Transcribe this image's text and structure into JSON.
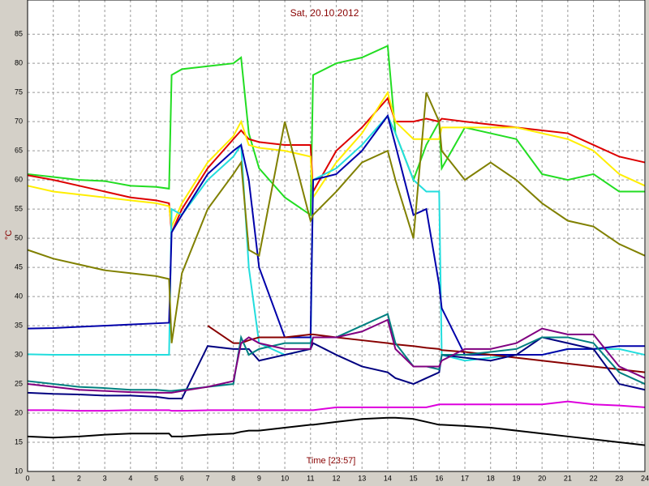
{
  "chart_data": {
    "type": "line",
    "title": "Sat, 20.10.2012",
    "x_label": "Time [23:57]",
    "y_label": "°C",
    "x": [
      0,
      1,
      2,
      3,
      4,
      5,
      5.5,
      5.6,
      6,
      7,
      8,
      8.3,
      8.6,
      9,
      10,
      11,
      11.1,
      12,
      13,
      14,
      14.3,
      15,
      15.5,
      16,
      16.1,
      17,
      18,
      19,
      20,
      21,
      22,
      23,
      24
    ],
    "xlim": [
      0,
      24
    ],
    "xticks": [
      0,
      1,
      2,
      3,
      4,
      5,
      6,
      7,
      8,
      9,
      10,
      11,
      12,
      13,
      14,
      15,
      16,
      17,
      18,
      19,
      20,
      21,
      22,
      23,
      24
    ],
    "ylim": [
      10,
      86
    ],
    "yticks": [
      10,
      15,
      20,
      25,
      30,
      35,
      40,
      45,
      50,
      55,
      60,
      65,
      70,
      75,
      80,
      85
    ],
    "grid": true,
    "series": [
      {
        "color": "#22dd22",
        "values": [
          61,
          60.5,
          60,
          59.8,
          59,
          58.8,
          58.5,
          78,
          79,
          79.5,
          80,
          81,
          68,
          62,
          57,
          54,
          78,
          80,
          81,
          83,
          68,
          60,
          66,
          70,
          62,
          69,
          68,
          67,
          61,
          60,
          61,
          58,
          58
        ]
      },
      {
        "color": "#dd0000",
        "values": [
          60.8,
          60,
          59,
          58,
          57,
          56.5,
          56,
          51,
          55,
          62,
          67,
          68.5,
          67,
          66.5,
          66,
          66,
          58,
          65,
          69,
          74,
          70,
          70,
          70.5,
          70,
          70.5,
          70,
          69.5,
          69,
          68.5,
          68,
          66,
          64,
          63
        ]
      },
      {
        "color": "#ffee00",
        "values": [
          59,
          58,
          57.5,
          57,
          56.5,
          56,
          55.5,
          52,
          56,
          63,
          67.5,
          70,
          66,
          65.5,
          65,
          64,
          57,
          63,
          68,
          75,
          70,
          67,
          67,
          67,
          69,
          69,
          69,
          69,
          68,
          67,
          65,
          61,
          59
        ]
      },
      {
        "color": "#22dddd",
        "values": [
          30.1,
          30,
          30,
          30,
          30,
          30,
          30,
          55,
          54,
          60,
          64,
          66,
          45,
          32,
          30,
          31,
          60,
          62,
          66,
          71,
          68,
          60,
          58,
          58,
          30,
          29,
          29.5,
          30,
          30,
          31,
          31,
          31,
          30
        ]
      },
      {
        "color": "#0000aa",
        "values": [
          34.5,
          34.6,
          34.8,
          35,
          35.2,
          35.4,
          35.5,
          51,
          54,
          61,
          65,
          66,
          60,
          45,
          33,
          33,
          60,
          61,
          65,
          71,
          66,
          54,
          55,
          42,
          38,
          30,
          30,
          30,
          30,
          31,
          31,
          31.5,
          31.5
        ]
      },
      {
        "color": "#808000",
        "values": [
          48,
          46.5,
          45.5,
          44.5,
          44,
          43.5,
          43,
          32,
          44,
          55,
          61,
          63,
          48,
          47,
          70,
          53,
          54,
          58,
          63,
          65,
          60,
          50,
          75,
          70,
          65,
          60,
          63,
          60,
          56,
          53,
          52,
          49,
          47
        ]
      },
      {
        "color": "#880000",
        "values": [
          null,
          null,
          null,
          null,
          null,
          null,
          null,
          null,
          null,
          35,
          32,
          32,
          32.5,
          33,
          33,
          33.5,
          33.5,
          33,
          32.5,
          32,
          31.8,
          31.5,
          31.2,
          31,
          30.8,
          30.5,
          30,
          29.5,
          29,
          28.5,
          28,
          27.5,
          27
        ]
      },
      {
        "color": "#000080",
        "values": [
          23.5,
          23.3,
          23.2,
          23,
          23,
          22.8,
          22.5,
          22.5,
          22.5,
          31.5,
          31,
          31,
          31,
          29,
          30,
          31,
          32,
          30,
          28,
          27,
          26,
          25,
          26,
          27,
          30,
          29.5,
          29,
          30,
          33,
          32,
          31,
          25,
          24
        ]
      },
      {
        "color": "#008080",
        "values": [
          25.5,
          25,
          24.5,
          24.3,
          24,
          24,
          23.8,
          23.8,
          24,
          24.5,
          25,
          33,
          30,
          31,
          32,
          32,
          33,
          33,
          35,
          37,
          32,
          28,
          28,
          27.5,
          30,
          30,
          30.5,
          31,
          33,
          33,
          32,
          27,
          25
        ]
      },
      {
        "color": "#800080",
        "values": [
          25,
          24.5,
          24,
          23.8,
          23.6,
          23.5,
          23.5,
          23.5,
          23.8,
          24.5,
          25.5,
          32,
          33,
          32,
          31,
          31,
          33,
          33,
          34,
          36,
          31,
          28,
          28,
          28,
          29,
          31,
          31,
          32,
          34.5,
          33.5,
          33.5,
          28,
          26
        ]
      },
      {
        "color": "#dd00dd",
        "values": [
          20.5,
          20.5,
          20.4,
          20.4,
          20.5,
          20.5,
          20.5,
          20.4,
          20.4,
          20.5,
          20.5,
          20.5,
          20.5,
          20.5,
          20.5,
          20.5,
          20.5,
          21,
          21,
          21,
          21,
          21,
          21,
          21.5,
          21.5,
          21.5,
          21.5,
          21.5,
          21.5,
          22,
          21.5,
          21.3,
          21
        ]
      },
      {
        "color": "#000000",
        "values": [
          16,
          15.8,
          16,
          16.3,
          16.5,
          16.5,
          16.5,
          16,
          16,
          16.3,
          16.5,
          16.8,
          17,
          17,
          17.5,
          18,
          18,
          18.5,
          19,
          19.2,
          19.2,
          19,
          18.5,
          18,
          18,
          17.8,
          17.5,
          17,
          16.5,
          16,
          15.5,
          15,
          14.5
        ]
      }
    ]
  }
}
